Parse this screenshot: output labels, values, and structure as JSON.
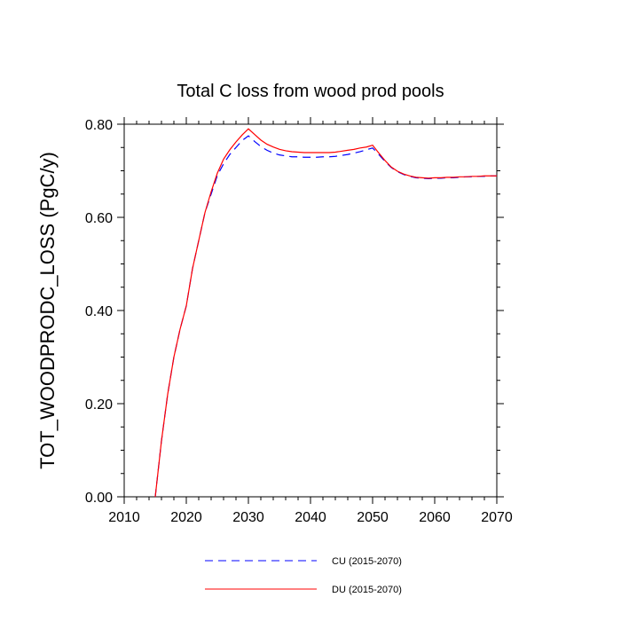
{
  "chart_data": {
    "type": "line",
    "title": "Total C loss from wood prod pools",
    "xlabel": "",
    "ylabel": "TOT_WOODPRODC_LOSS  (PgC/y)",
    "xlim": [
      2010,
      2070
    ],
    "ylim": [
      0.0,
      0.8
    ],
    "x_ticks": [
      2010,
      2020,
      2030,
      2040,
      2050,
      2060,
      2070
    ],
    "x_tick_labels": [
      "2010",
      "2020",
      "2030",
      "2040",
      "2050",
      "2060",
      "2070"
    ],
    "y_ticks": [
      0.0,
      0.2,
      0.4,
      0.6,
      0.8
    ],
    "y_tick_labels": [
      "0.00",
      "0.20",
      "0.40",
      "0.60",
      "0.80"
    ],
    "grid": false,
    "legend_position": "bottom",
    "series": [
      {
        "name": "CU (2015-2070)",
        "color": "#0000ff",
        "dash": "dashed",
        "x": [
          2015,
          2016,
          2017,
          2018,
          2019,
          2020,
          2021,
          2022,
          2023,
          2024,
          2025,
          2026,
          2027,
          2028,
          2029,
          2030,
          2031,
          2032,
          2033,
          2034,
          2035,
          2036,
          2037,
          2038,
          2039,
          2040,
          2041,
          2042,
          2043,
          2044,
          2045,
          2046,
          2047,
          2048,
          2049,
          2050,
          2051,
          2052,
          2053,
          2054,
          2055,
          2056,
          2057,
          2058,
          2059,
          2060,
          2061,
          2062,
          2063,
          2064,
          2065,
          2066,
          2067,
          2068,
          2069,
          2070
        ],
        "y": [
          0.0,
          0.12,
          0.22,
          0.3,
          0.36,
          0.41,
          0.49,
          0.55,
          0.61,
          0.65,
          0.69,
          0.715,
          0.735,
          0.75,
          0.765,
          0.775,
          0.763,
          0.752,
          0.744,
          0.738,
          0.734,
          0.732,
          0.73,
          0.73,
          0.729,
          0.729,
          0.729,
          0.73,
          0.73,
          0.731,
          0.733,
          0.735,
          0.738,
          0.741,
          0.745,
          0.749,
          0.735,
          0.72,
          0.707,
          0.698,
          0.692,
          0.688,
          0.685,
          0.684,
          0.683,
          0.684,
          0.684,
          0.685,
          0.685,
          0.686,
          0.687,
          0.687,
          0.688,
          0.688,
          0.689,
          0.689
        ]
      },
      {
        "name": "DU (2015-2070)",
        "color": "#ff0000",
        "dash": "solid",
        "x": [
          2015,
          2016,
          2017,
          2018,
          2019,
          2020,
          2021,
          2022,
          2023,
          2024,
          2025,
          2026,
          2027,
          2028,
          2029,
          2030,
          2031,
          2032,
          2033,
          2034,
          2035,
          2036,
          2037,
          2038,
          2039,
          2040,
          2041,
          2042,
          2043,
          2044,
          2045,
          2046,
          2047,
          2048,
          2049,
          2050,
          2051,
          2052,
          2053,
          2054,
          2055,
          2056,
          2057,
          2058,
          2059,
          2060,
          2061,
          2062,
          2063,
          2064,
          2065,
          2066,
          2067,
          2068,
          2069,
          2070
        ],
        "y": [
          0.0,
          0.12,
          0.22,
          0.3,
          0.36,
          0.41,
          0.49,
          0.55,
          0.61,
          0.655,
          0.695,
          0.725,
          0.745,
          0.762,
          0.777,
          0.79,
          0.778,
          0.766,
          0.757,
          0.751,
          0.746,
          0.743,
          0.741,
          0.74,
          0.739,
          0.739,
          0.739,
          0.739,
          0.739,
          0.74,
          0.742,
          0.744,
          0.746,
          0.749,
          0.751,
          0.755,
          0.738,
          0.722,
          0.708,
          0.699,
          0.693,
          0.689,
          0.686,
          0.685,
          0.684,
          0.685,
          0.685,
          0.686,
          0.686,
          0.687,
          0.687,
          0.688,
          0.688,
          0.689,
          0.689,
          0.689
        ]
      }
    ]
  }
}
